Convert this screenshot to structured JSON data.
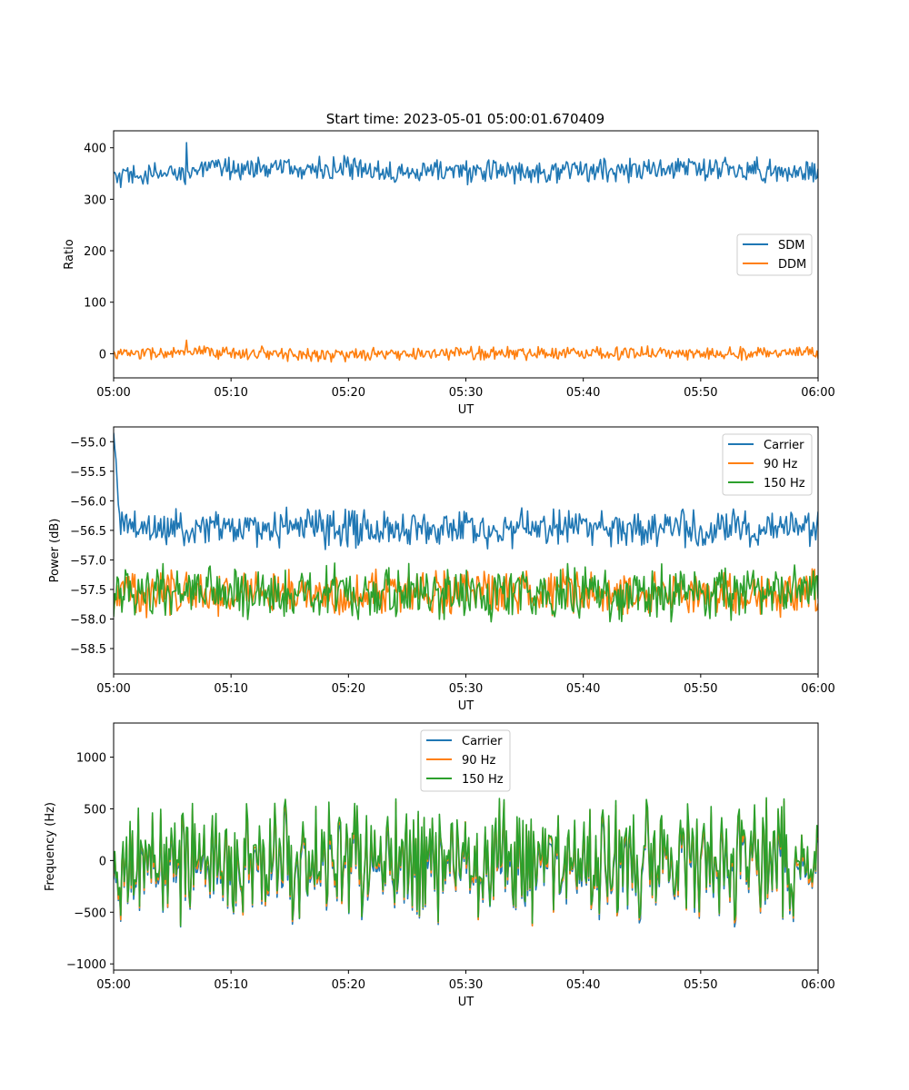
{
  "figure_title": "Start time: 2023-05-01 05:00:01.670409",
  "colors": {
    "blue": "#1f77b4",
    "orange": "#ff7f0e",
    "green": "#2ca02c"
  },
  "chart_data": [
    {
      "type": "line",
      "title": "Start time: 2023-05-01 05:00:01.670409",
      "xlabel": "UT",
      "ylabel": "Ratio",
      "xlim": [
        "05:00",
        "06:00"
      ],
      "ylim": [
        -47,
        433
      ],
      "xticks": [
        "05:00",
        "05:10",
        "05:20",
        "05:30",
        "05:40",
        "05:50",
        "06:00"
      ],
      "yticks": [
        0,
        100,
        200,
        300,
        400
      ],
      "ytick_labels": [
        "0",
        "100",
        "200",
        "300",
        "400"
      ],
      "legend_placement": "center-right",
      "series": [
        {
          "name": "SDM",
          "color": "#1f77b4",
          "mean": 355,
          "amplitude": 18,
          "values_by_10min": [
            340,
            362,
            358,
            354,
            356,
            360,
            352
          ],
          "notable_peak": 410
        },
        {
          "name": "DDM",
          "color": "#ff7f0e",
          "mean": 0,
          "amplitude": 10,
          "values_by_10min": [
            0,
            2,
            -3,
            1,
            2,
            0,
            3
          ],
          "notable_peak": 26
        }
      ]
    },
    {
      "type": "line",
      "title": "",
      "xlabel": "UT",
      "ylabel": "Power (dB)",
      "xlim": [
        "05:00",
        "06:00"
      ],
      "ylim": [
        -58.93,
        -54.75
      ],
      "xticks": [
        "05:00",
        "05:10",
        "05:20",
        "05:30",
        "05:40",
        "05:50",
        "06:00"
      ],
      "yticks": [
        -55.0,
        -55.5,
        -56.0,
        -56.5,
        -57.0,
        -57.5,
        -58.0,
        -58.5
      ],
      "ytick_labels": [
        "−55.0",
        "−55.5",
        "−56.0",
        "−56.5",
        "−57.0",
        "−57.5",
        "−58.0",
        "−58.5"
      ],
      "legend_placement": "top-right",
      "series": [
        {
          "name": "Carrier",
          "color": "#1f77b4",
          "mean": -56.45,
          "amplitude": 0.25,
          "start_value": -54.85
        },
        {
          "name": "90 Hz",
          "color": "#ff7f0e",
          "mean": -57.55,
          "amplitude": 0.3
        },
        {
          "name": "150 Hz",
          "color": "#2ca02c",
          "mean": -57.55,
          "amplitude": 0.35
        }
      ]
    },
    {
      "type": "line",
      "title": "",
      "xlabel": "UT",
      "ylabel": "Frequency (Hz)",
      "xlim": [
        "05:00",
        "06:00"
      ],
      "ylim": [
        -1060,
        1330
      ],
      "xticks": [
        "05:00",
        "05:10",
        "05:20",
        "05:30",
        "05:40",
        "05:50",
        "06:00"
      ],
      "yticks": [
        -1000,
        -500,
        0,
        500,
        1000
      ],
      "ytick_labels": [
        "−1000",
        "−500",
        "0",
        "500",
        "1000"
      ],
      "legend_placement": "top-center",
      "series": [
        {
          "name": "Carrier",
          "color": "#1f77b4",
          "mean": -60,
          "amplitude": 380
        },
        {
          "name": "90 Hz",
          "color": "#ff7f0e",
          "mean": -25,
          "amplitude": 390
        },
        {
          "name": "150 Hz",
          "color": "#2ca02c",
          "mean": 0,
          "amplitude": 400
        }
      ]
    }
  ]
}
